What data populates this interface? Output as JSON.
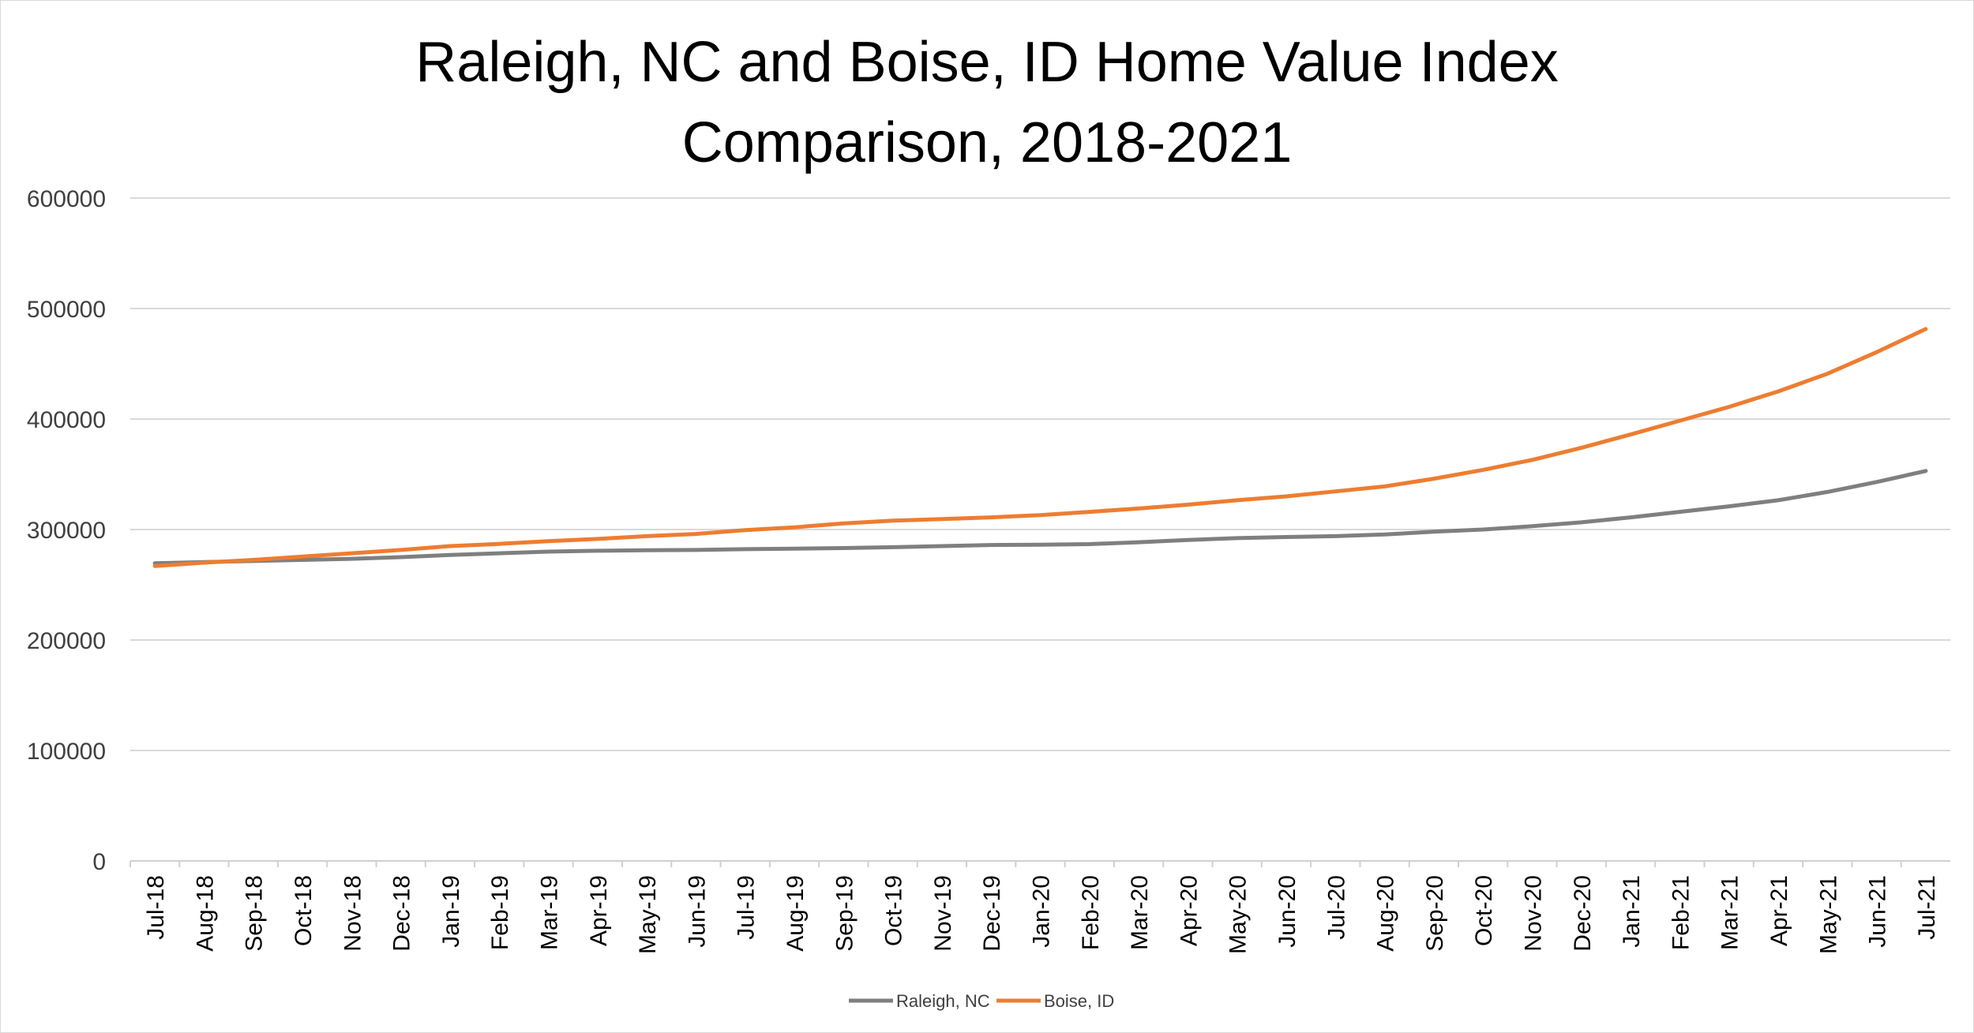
{
  "chart_data": {
    "type": "line",
    "title_lines": [
      "Raleigh, NC and Boise, ID Home Value Index",
      "Comparison, 2018-2021"
    ],
    "xlabel": "",
    "ylabel": "",
    "ylim": [
      0,
      600000
    ],
    "y_ticks": [
      "0",
      "100000",
      "200000",
      "300000",
      "400000",
      "500000",
      "600000"
    ],
    "grid": true,
    "legend_position": "bottom",
    "categories": [
      "Jul-18",
      "Aug-18",
      "Sep-18",
      "Oct-18",
      "Nov-18",
      "Dec-18",
      "Jan-19",
      "Feb-19",
      "Mar-19",
      "Apr-19",
      "May-19",
      "Jun-19",
      "Jul-19",
      "Aug-19",
      "Sep-19",
      "Oct-19",
      "Nov-19",
      "Dec-19",
      "Jan-20",
      "Feb-20",
      "Mar-20",
      "Apr-20",
      "May-20",
      "Jun-20",
      "Jul-20",
      "Aug-20",
      "Sep-20",
      "Oct-20",
      "Nov-20",
      "Dec-20",
      "Jan-21",
      "Feb-21",
      "Mar-21",
      "Apr-21",
      "May-21",
      "Jun-21",
      "Jul-21"
    ],
    "series": [
      {
        "name": "Raleigh, NC",
        "color": "#7f7f7f",
        "values": [
          269500,
          270500,
          271500,
          272500,
          273500,
          275000,
          277000,
          278500,
          280000,
          280800,
          281200,
          281500,
          282200,
          282700,
          283200,
          284000,
          285000,
          286000,
          286300,
          286800,
          288500,
          290500,
          292200,
          293200,
          294000,
          295500,
          298000,
          300000,
          303000,
          306500,
          311000,
          316000,
          321000,
          326500,
          334000,
          343000,
          353000
        ]
      },
      {
        "name": "Boise, ID",
        "color": "#ed7d31",
        "values": [
          267000,
          270000,
          272500,
          275500,
          278500,
          281500,
          285000,
          287000,
          289500,
          291500,
          294000,
          296000,
          299500,
          302000,
          305500,
          308000,
          309500,
          311000,
          313000,
          316000,
          319000,
          322500,
          326500,
          330000,
          334500,
          339000,
          346000,
          354000,
          363000,
          374000,
          386000,
          398500,
          411000,
          425000,
          441000,
          460500,
          481500
        ]
      }
    ]
  }
}
